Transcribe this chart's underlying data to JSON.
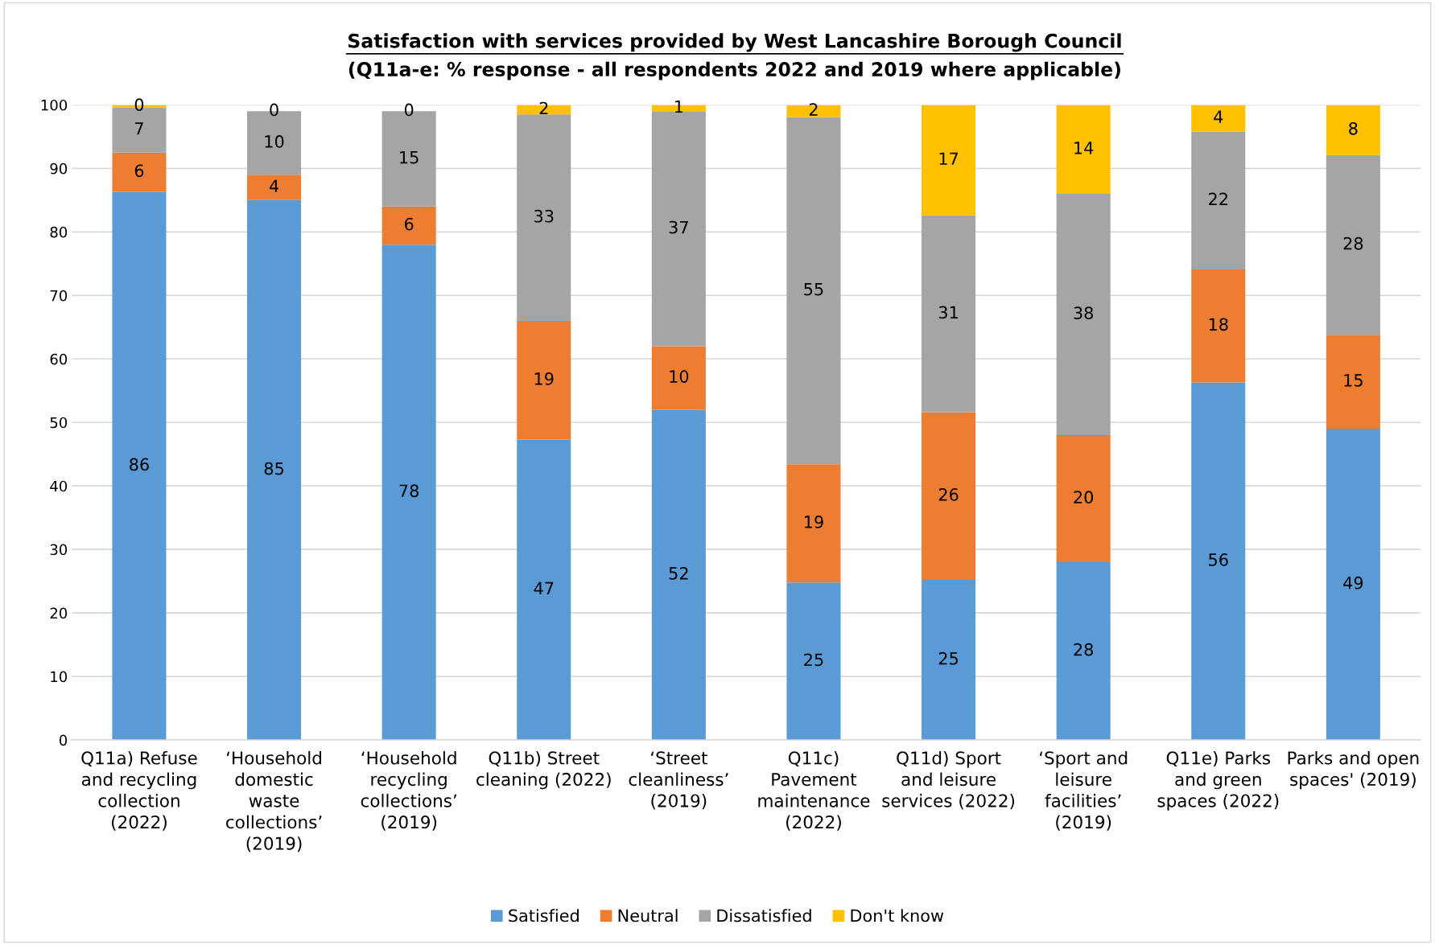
{
  "chart_data": {
    "type": "bar",
    "stacked": true,
    "title": "Satisfaction with services provided by West Lancashire Borough Council",
    "subtitle": "(Q11a-e: % response - all respondents 2022 and 2019 where applicable)",
    "categories": [
      "Q11a) Refuse\nand recycling\ncollection\n(2022)",
      "‘Household\ndomestic\nwaste\ncollections’\n(2019)",
      "‘Household\nrecycling\ncollections’\n(2019)",
      "Q11b) Street\ncleaning (2022)",
      "‘Street\ncleanliness’\n(2019)",
      "Q11c)\nPavement\nmaintenance\n(2022)",
      "Q11d) Sport\nand leisure\nservices (2022)",
      "‘Sport and\nleisure\nfacilities’\n(2019)",
      "Q11e) Parks\nand green\nspaces (2022)",
      "Parks and open\nspaces' (2019)"
    ],
    "series": [
      {
        "name": "Satisfied",
        "color": "#5b9bd5",
        "values": [
          86.3,
          85,
          78,
          47.3,
          52,
          24.8,
          25.2,
          28,
          56.3,
          49
        ],
        "value_labels": [
          "86",
          "85",
          "78",
          "47",
          "52",
          "25",
          "25",
          "28",
          "56",
          "49"
        ]
      },
      {
        "name": "Neutral",
        "color": "#ed7d31",
        "values": [
          6.2,
          4,
          6,
          18.7,
          10,
          18.6,
          26.4,
          20,
          17.8,
          14.8
        ],
        "value_labels": [
          "6",
          "4",
          "6",
          "19",
          "10",
          "19",
          "26",
          "20",
          "18",
          "15"
        ]
      },
      {
        "name": "Dissatisfied",
        "color": "#a5a5a5",
        "values": [
          7.1,
          10,
          15,
          32.5,
          37,
          54.7,
          31,
          38,
          21.7,
          28.3
        ],
        "value_labels": [
          "7",
          "10",
          "15",
          "33",
          "37",
          "55",
          "31",
          "38",
          "22",
          "28"
        ]
      },
      {
        "name": "Don't know",
        "color": "#ffc000",
        "values": [
          0.4,
          0,
          0,
          1.5,
          1,
          1.9,
          17.4,
          14,
          4.2,
          7.9
        ],
        "value_labels": [
          "0",
          "0",
          "0",
          "2",
          "1",
          "2",
          "17",
          "14",
          "4",
          "8"
        ]
      }
    ],
    "ylim": [
      0,
      100
    ],
    "yticks": [
      0,
      10,
      20,
      30,
      40,
      50,
      60,
      70,
      80,
      90,
      100
    ],
    "grid": "y",
    "legend": "bottom"
  }
}
